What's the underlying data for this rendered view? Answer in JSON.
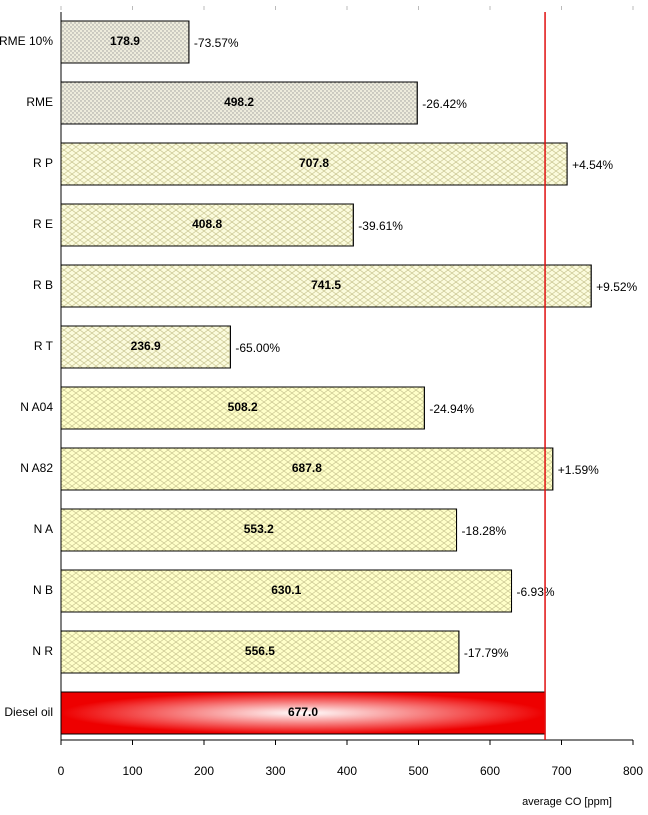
{
  "chart_data": {
    "type": "hbar",
    "categories": [
      "RME 10%",
      "RME",
      "R P",
      "R E",
      "R B",
      "R T",
      "N A04",
      "N A82",
      "N A",
      "N B",
      "N R",
      "Diesel oil"
    ],
    "values": [
      178.9,
      498.2,
      707.8,
      408.8,
      741.5,
      236.9,
      508.2,
      687.8,
      553.2,
      630.1,
      556.5,
      677.0
    ],
    "value_labels": [
      "178.9",
      "498.2",
      "707.8",
      "408.8",
      "741.5",
      "236.9",
      "508.2",
      "687.8",
      "553.2",
      "630.1",
      "556.5",
      "677.0"
    ],
    "annotations": [
      "-73.57%",
      "-26.42%",
      "+4.54%",
      "-39.61%",
      "+9.52%",
      "-65.00%",
      "-24.94%",
      "+1.59%",
      "-18.28%",
      "-6.93%",
      "-17.79%"
    ],
    "colors": [
      "#eeecdc",
      "#eeecdc",
      "#fbfbdc",
      "#fbfbdc",
      "#fbfbdc",
      "#fbfbdc",
      "#ffffc8",
      "#ffffc8",
      "#ffffc8",
      "#ffffc8",
      "#ffffc8",
      "#ee0000"
    ],
    "fill_styles": [
      "dots",
      "dots",
      "hatch",
      "hatch",
      "hatch",
      "hatch",
      "hatch",
      "hatch",
      "hatch",
      "hatch",
      "hatch",
      "gradient"
    ],
    "reference_line": 677.0,
    "reference_color": "#e01010",
    "xlabel": "average CO [ppm]",
    "xlim": [
      0,
      800
    ],
    "xticks": [
      0,
      100,
      200,
      300,
      400,
      500,
      600,
      700,
      800
    ]
  }
}
